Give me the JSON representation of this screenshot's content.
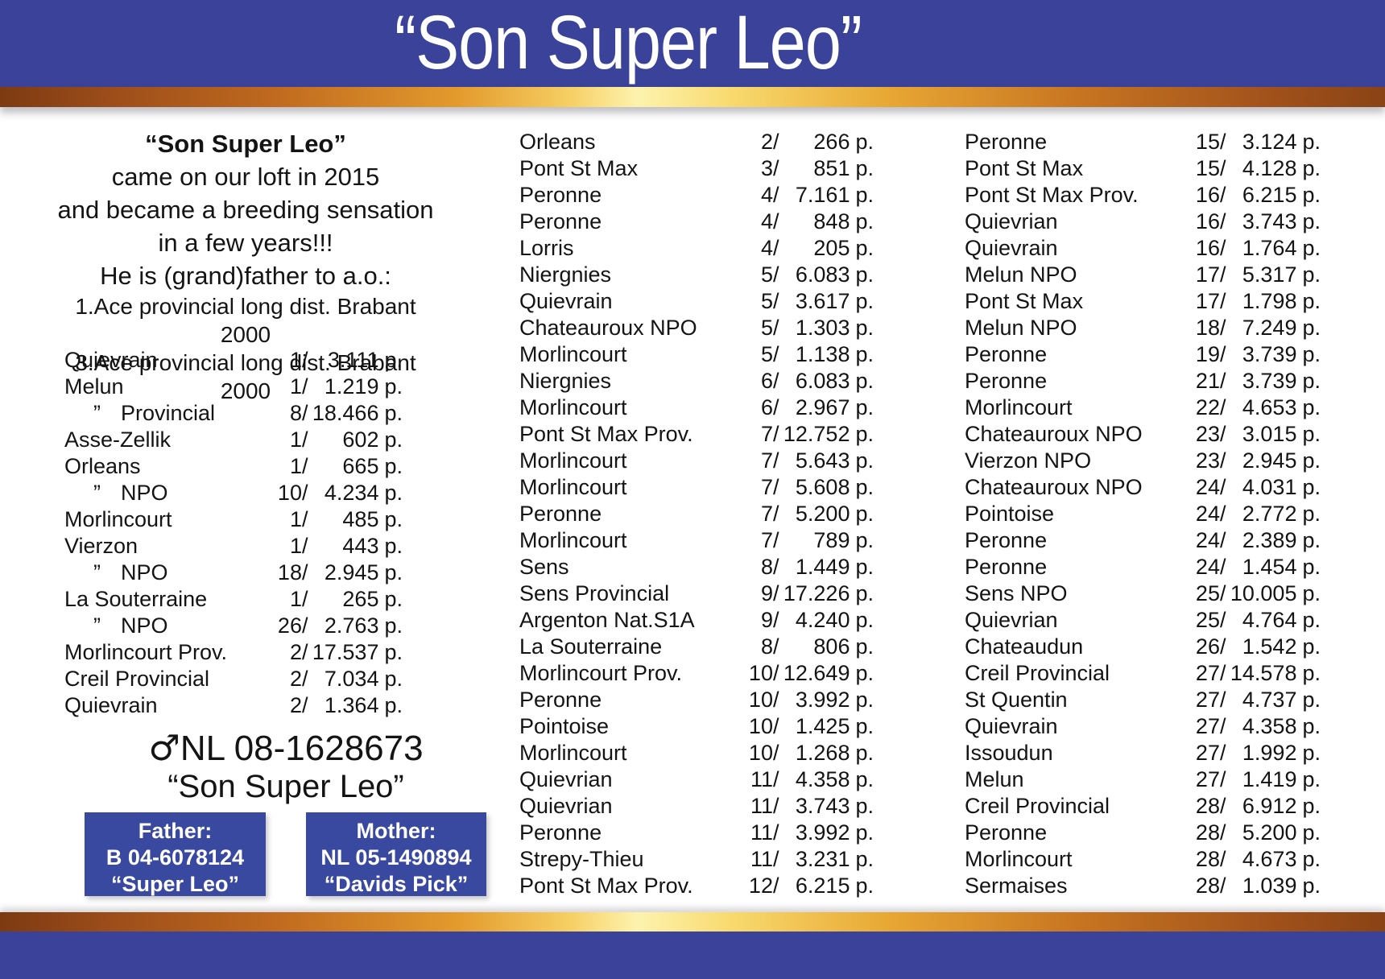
{
  "header": {
    "title": "“Son Super Leo”"
  },
  "intro": {
    "lines": [
      "“Son Super Leo”",
      "came on our loft in 2015",
      "and became a breeding sensation",
      "in a few years!!!",
      "He is (grand)father to a.o.:",
      "1.Ace provincial long dist. Brabant 2000",
      "3.Ace provincial long dist. Brabant 2000"
    ]
  },
  "unit": "p.",
  "ditto_mark": "”",
  "left_results": [
    [
      "Quievrain",
      "1",
      "3.111"
    ],
    [
      "Melun",
      "1",
      "1.219"
    ],
    [
      "Provincial",
      "8",
      "18.466",
      "i"
    ],
    [
      "Asse-Zellik",
      "1",
      "602"
    ],
    [
      "Orleans",
      "1",
      "665"
    ],
    [
      "NPO",
      "10",
      "4.234",
      "i"
    ],
    [
      "Morlincourt",
      "1",
      "485"
    ],
    [
      "Vierzon",
      "1",
      "443"
    ],
    [
      "NPO",
      "18",
      "2.945",
      "i"
    ],
    [
      "La Souterraine",
      "1",
      "265"
    ],
    [
      "NPO",
      "26",
      "2.763",
      "i"
    ],
    [
      "Morlincourt Prov.",
      "2",
      "17.537"
    ],
    [
      "Creil Provincial",
      "2",
      "7.034"
    ],
    [
      "Quievrain",
      "2",
      "1.364"
    ]
  ],
  "mid_results": [
    [
      "Orleans",
      "2",
      "266"
    ],
    [
      "Pont St Max",
      "3",
      "851"
    ],
    [
      "Peronne",
      "4",
      "7.161"
    ],
    [
      "Peronne",
      "4",
      "848"
    ],
    [
      "Lorris",
      "4",
      "205"
    ],
    [
      "Niergnies",
      "5",
      "6.083"
    ],
    [
      "Quievrain",
      "5",
      "3.617"
    ],
    [
      "Chateauroux NPO",
      "5",
      "1.303"
    ],
    [
      "Morlincourt",
      "5",
      "1.138"
    ],
    [
      "Niergnies",
      "6",
      "6.083"
    ],
    [
      "Morlincourt",
      "6",
      "2.967"
    ],
    [
      "Pont St Max Prov.",
      "7",
      "12.752"
    ],
    [
      "Morlincourt",
      "7",
      "5.643"
    ],
    [
      "Morlincourt",
      "7",
      "5.608"
    ],
    [
      "Peronne",
      "7",
      "5.200"
    ],
    [
      "Morlincourt",
      "7",
      "789"
    ],
    [
      "Sens",
      "8",
      "1.449"
    ],
    [
      "Sens Provincial",
      "9",
      "17.226"
    ],
    [
      "Argenton Nat.S1A",
      "9",
      "4.240"
    ],
    [
      "La Souterraine",
      "8",
      "806"
    ],
    [
      "Morlincourt Prov.",
      "10",
      "12.649"
    ],
    [
      "Peronne",
      "10",
      "3.992"
    ],
    [
      "Pointoise",
      "10",
      "1.425"
    ],
    [
      "Morlincourt",
      "10",
      "1.268"
    ],
    [
      "Quievrian",
      "11",
      "4.358"
    ],
    [
      "Quievrian",
      "11",
      "3.743"
    ],
    [
      "Peronne",
      "11",
      "3.992"
    ],
    [
      "Strepy-Thieu",
      "11",
      "3.231"
    ],
    [
      "Pont St Max Prov.",
      "12",
      "6.215"
    ]
  ],
  "right_results": [
    [
      "Peronne",
      "15",
      "3.124"
    ],
    [
      "Pont St Max",
      "15",
      "4.128"
    ],
    [
      "Pont St Max Prov.",
      "16",
      "6.215"
    ],
    [
      "Quievrian",
      "16",
      "3.743"
    ],
    [
      "Quievrain",
      "16",
      "1.764"
    ],
    [
      "Melun NPO",
      "17",
      "5.317"
    ],
    [
      "Pont St Max",
      "17",
      "1.798"
    ],
    [
      "Melun NPO",
      "18",
      "7.249"
    ],
    [
      "Peronne",
      "19",
      "3.739"
    ],
    [
      "Peronne",
      "21",
      "3.739"
    ],
    [
      "Morlincourt",
      "22",
      "4.653"
    ],
    [
      "Chateauroux NPO",
      "23",
      "3.015"
    ],
    [
      "Vierzon NPO",
      "23",
      "2.945"
    ],
    [
      "Chateauroux NPO",
      "24",
      "4.031"
    ],
    [
      "Pointoise",
      "24",
      "2.772"
    ],
    [
      "Peronne",
      "24",
      "2.389"
    ],
    [
      "Peronne",
      "24",
      "1.454"
    ],
    [
      "Sens NPO",
      "25",
      "10.005"
    ],
    [
      "Quievrian",
      "25",
      "4.764"
    ],
    [
      "Chateaudun",
      "26",
      "1.542"
    ],
    [
      "Creil Provincial",
      "27",
      "14.578"
    ],
    [
      "St Quentin",
      "27",
      "4.737"
    ],
    [
      "Quievrain",
      "27",
      "4.358"
    ],
    [
      "Issoudun",
      "27",
      "1.992"
    ],
    [
      "Melun",
      "27",
      "1.419"
    ],
    [
      "Creil Provincial",
      "28",
      "6.912"
    ],
    [
      "Peronne",
      "28",
      "5.200"
    ],
    [
      "Morlincourt",
      "28",
      "4.673"
    ],
    [
      "Sermaises",
      "28",
      "1.039"
    ]
  ],
  "bird": {
    "sex_symbol": "♂",
    "ring": "NL 08-1628673",
    "name": "“Son Super Leo”"
  },
  "father": {
    "label": "Father:",
    "ring": "B 04-6078124",
    "name": "“Super Leo”"
  },
  "mother": {
    "label": "Mother:",
    "ring": "NL 05-1490894",
    "name": "“Davids Pick”"
  },
  "colors": {
    "band_blue": "#3a4399",
    "box_blue": "#3a49a0",
    "gold_dark": "#8a4315",
    "gold_light": "#fdf3ae"
  }
}
